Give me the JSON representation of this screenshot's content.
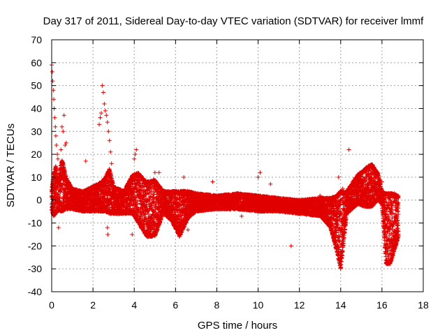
{
  "chart_data": {
    "type": "scatter",
    "title": "Day 317 of 2011, Sidereal Day-to-day VTEC variation (SDTVAR) for receiver lmmf",
    "xlabel": "GPS time / hours",
    "ylabel": "SDTVAR / TECUs",
    "xlim": [
      0,
      18
    ],
    "ylim": [
      -40,
      70
    ],
    "xticks": [
      0,
      2,
      4,
      6,
      8,
      10,
      12,
      14,
      16,
      18
    ],
    "yticks": [
      -40,
      -30,
      -20,
      -10,
      0,
      10,
      20,
      30,
      40,
      50,
      60,
      70
    ],
    "grid": true,
    "marker": "+",
    "color": "#e00000",
    "series": [
      {
        "name": "SDTVAR",
        "envelope_x": [
          0,
          0.1,
          0.2,
          0.3,
          0.5,
          0.7,
          1.0,
          1.5,
          2.0,
          2.4,
          2.6,
          2.8,
          3.0,
          3.5,
          3.9,
          4.2,
          4.6,
          5.0,
          5.4,
          5.8,
          6.2,
          6.6,
          7.0,
          8.0,
          9.0,
          10.0,
          11.0,
          12.0,
          13.0,
          13.5,
          13.8,
          14.0,
          14.3,
          14.8,
          15.2,
          15.5,
          15.8,
          16.0,
          16.2,
          16.4,
          16.6,
          16.8
        ],
        "upper": [
          5,
          12,
          15,
          8,
          18,
          10,
          5,
          4,
          6,
          8,
          10,
          14,
          6,
          4,
          11,
          12,
          8,
          9,
          4,
          4,
          4,
          4,
          3,
          2,
          3,
          2,
          1,
          0,
          1,
          1,
          2,
          4,
          4,
          11,
          14,
          16,
          12,
          4,
          3,
          3,
          3,
          2
        ],
        "lower": [
          -5,
          -7,
          -6,
          -5,
          -5,
          -4,
          -4,
          -5,
          -5,
          -5,
          -5,
          -6,
          -6,
          -6,
          -6,
          -10,
          -16,
          -16,
          -6,
          -9,
          -16,
          -8,
          -5,
          -4,
          -4,
          -5,
          -5,
          -6,
          -7,
          -12,
          -22,
          -30,
          -6,
          -2,
          -3,
          -3,
          0,
          -2,
          -28,
          -28,
          -22,
          -16
        ],
        "outliers": [
          [
            0.0,
            59
          ],
          [
            0.03,
            56
          ],
          [
            0.05,
            52
          ],
          [
            0.08,
            48
          ],
          [
            0.1,
            44
          ],
          [
            0.12,
            40
          ],
          [
            0.15,
            36
          ],
          [
            0.18,
            32
          ],
          [
            0.2,
            28
          ],
          [
            0.23,
            24
          ],
          [
            0.27,
            20
          ],
          [
            0.3,
            18
          ],
          [
            0.33,
            -12
          ],
          [
            0.45,
            22
          ],
          [
            0.5,
            32
          ],
          [
            0.55,
            30
          ],
          [
            0.6,
            37
          ],
          [
            0.65,
            24
          ],
          [
            0.7,
            25
          ],
          [
            1.65,
            17
          ],
          [
            2.3,
            33
          ],
          [
            2.35,
            36
          ],
          [
            2.4,
            38
          ],
          [
            2.45,
            50
          ],
          [
            2.5,
            47
          ],
          [
            2.55,
            42
          ],
          [
            2.6,
            39
          ],
          [
            2.65,
            37
          ],
          [
            2.7,
            34
          ],
          [
            2.75,
            30
          ],
          [
            2.7,
            -12
          ],
          [
            2.72,
            -15
          ],
          [
            2.8,
            26
          ],
          [
            2.85,
            21
          ],
          [
            2.9,
            16
          ],
          [
            3.9,
            -15
          ],
          [
            4.0,
            18
          ],
          [
            4.1,
            22
          ],
          [
            4.05,
            20
          ],
          [
            5.0,
            12
          ],
          [
            5.2,
            12
          ],
          [
            6.4,
            10
          ],
          [
            6.6,
            -13
          ],
          [
            7.8,
            8
          ],
          [
            9.2,
            -7
          ],
          [
            10.1,
            12
          ],
          [
            10.0,
            10
          ],
          [
            10.6,
            7
          ],
          [
            11.6,
            -20
          ],
          [
            12.1,
            -5
          ],
          [
            13.0,
            2
          ],
          [
            13.9,
            10
          ],
          [
            14.1,
            5
          ],
          [
            14.4,
            22
          ],
          [
            16.0,
            8
          ]
        ]
      }
    ]
  }
}
